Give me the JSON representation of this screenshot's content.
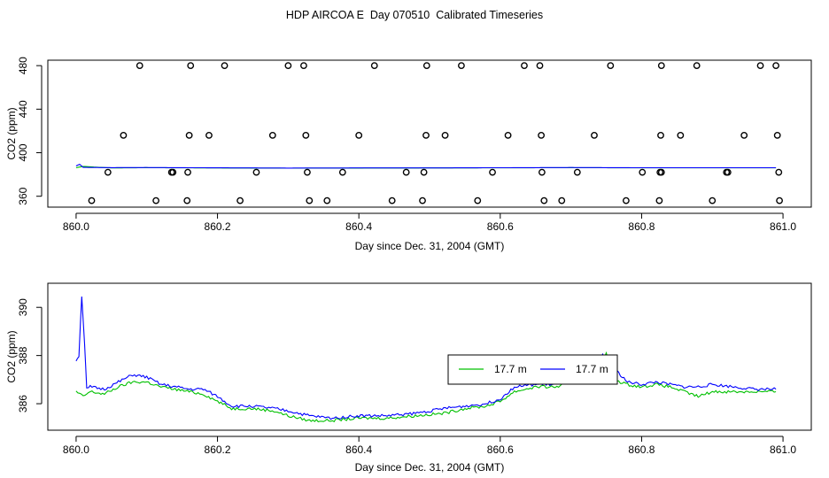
{
  "title": "HDP AIRCOA E  Day 070510  Calibrated Timeseries",
  "colors": {
    "green": "#00c000",
    "blue": "#0000ff",
    "axis": "#000000"
  },
  "chart_data": [
    {
      "type": "scatter",
      "xlabel": "Day since Dec. 31, 2004 (GMT)",
      "ylabel": "CO2 (ppm)",
      "xlim": [
        859.96,
        861.04
      ],
      "ylim": [
        350,
        485
      ],
      "xticks": [
        860.0,
        860.2,
        860.4,
        860.6,
        860.8,
        861.0
      ],
      "xtick_labels": [
        "860.0",
        "860.2",
        "860.4",
        "860.6",
        "860.8",
        "861.0"
      ],
      "yticks": [
        360,
        400,
        440,
        480
      ],
      "ytick_labels": [
        "360",
        "400",
        "440",
        "480"
      ],
      "points": {
        "y480": [
          860.09,
          860.162,
          860.21,
          860.3,
          860.322,
          860.422,
          860.496,
          860.545,
          860.634,
          860.656,
          860.756,
          860.828,
          860.878,
          860.968,
          860.99
        ],
        "y416": [
          860.067,
          860.16,
          860.188,
          860.278,
          860.325,
          860.4,
          860.495,
          860.522,
          860.611,
          860.658,
          860.733,
          860.827,
          860.855,
          860.945,
          860.992
        ],
        "y382": [
          860.045,
          860.135,
          860.137,
          860.158,
          860.255,
          860.327,
          860.377,
          860.467,
          860.492,
          860.589,
          860.659,
          860.709,
          860.801,
          860.826,
          860.828,
          860.92,
          860.922,
          860.994
        ],
        "y356": [
          860.022,
          860.113,
          860.157,
          860.232,
          860.33,
          860.355,
          860.447,
          860.49,
          860.568,
          860.662,
          860.687,
          860.778,
          860.825,
          860.9,
          860.995
        ]
      },
      "series": [
        {
          "color": "green",
          "x": [
            860.0,
            860.01,
            860.05,
            860.1,
            860.2,
            860.3,
            860.4,
            860.5,
            860.6,
            860.7,
            860.8,
            860.9,
            860.99
          ],
          "y": [
            386.2,
            387.4,
            386.0,
            386.2,
            386.0,
            385.8,
            385.9,
            386.0,
            386.1,
            386.2,
            386.1,
            386.1,
            386.1
          ]
        },
        {
          "color": "blue",
          "x": [
            860.0,
            860.005,
            860.01,
            860.05,
            860.1,
            860.2,
            860.3,
            860.4,
            860.5,
            860.6,
            860.7,
            860.8,
            860.9,
            860.99
          ],
          "y": [
            387.8,
            389.4,
            386.5,
            386.3,
            386.4,
            386.1,
            385.9,
            386.0,
            386.0,
            386.2,
            386.4,
            386.2,
            386.2,
            386.2
          ]
        }
      ]
    },
    {
      "type": "line",
      "xlabel": "Day since Dec. 31, 2004 (GMT)",
      "ylabel": "CO2 (ppm)",
      "xlim": [
        859.96,
        861.04
      ],
      "ylim": [
        384.9,
        391.0
      ],
      "xticks": [
        860.0,
        860.2,
        860.4,
        860.6,
        860.8,
        861.0
      ],
      "xtick_labels": [
        "860.0",
        "860.2",
        "860.4",
        "860.6",
        "860.8",
        "861.0"
      ],
      "yticks": [
        386,
        388,
        390
      ],
      "ytick_labels": [
        "386",
        "388",
        "390"
      ],
      "legend": {
        "position": "center-right",
        "entries": [
          {
            "label": "17.7 m",
            "color": "green"
          },
          {
            "label": "17.7 m",
            "color": "blue"
          }
        ]
      },
      "series": [
        {
          "name": "17.7 m",
          "color": "green",
          "x": [
            860.0,
            860.01,
            860.02,
            860.04,
            860.06,
            860.08,
            860.1,
            860.12,
            860.14,
            860.16,
            860.18,
            860.2,
            860.22,
            860.25,
            860.28,
            860.3,
            860.33,
            860.36,
            860.4,
            860.44,
            860.48,
            860.52,
            860.55,
            860.58,
            860.6,
            860.62,
            860.65,
            860.68,
            860.7,
            860.72,
            860.74,
            860.75,
            860.76,
            860.78,
            860.8,
            860.82,
            860.84,
            860.86,
            860.88,
            860.9,
            860.93,
            860.96,
            860.99
          ],
          "y": [
            386.5,
            386.3,
            386.5,
            386.4,
            386.7,
            386.9,
            386.9,
            386.7,
            386.6,
            386.5,
            386.4,
            386.1,
            385.8,
            385.8,
            385.7,
            385.5,
            385.3,
            385.3,
            385.4,
            385.4,
            385.5,
            385.6,
            385.8,
            385.9,
            386.1,
            386.5,
            386.7,
            386.7,
            386.9,
            387.0,
            387.3,
            388.1,
            387.0,
            386.8,
            386.7,
            386.8,
            386.7,
            386.5,
            386.3,
            386.5,
            386.5,
            386.5,
            386.5
          ]
        },
        {
          "name": "17.7 m",
          "color": "blue",
          "x": [
            860.0,
            860.004,
            860.008,
            860.012,
            860.015,
            860.02,
            860.04,
            860.06,
            860.08,
            860.1,
            860.12,
            860.14,
            860.16,
            860.18,
            860.2,
            860.22,
            860.25,
            860.28,
            860.3,
            860.33,
            860.36,
            860.4,
            860.44,
            860.48,
            860.52,
            860.55,
            860.58,
            860.6,
            860.62,
            860.65,
            860.68,
            860.7,
            860.72,
            860.74,
            860.745,
            860.75,
            860.76,
            860.78,
            860.8,
            860.82,
            860.84,
            860.86,
            860.88,
            860.9,
            860.93,
            860.96,
            860.99
          ],
          "y": [
            387.8,
            388.0,
            390.5,
            388.5,
            386.6,
            386.7,
            386.6,
            386.9,
            387.2,
            387.1,
            386.8,
            386.7,
            386.6,
            386.6,
            386.3,
            385.9,
            385.9,
            385.8,
            385.7,
            385.5,
            385.4,
            385.5,
            385.5,
            385.6,
            385.8,
            385.9,
            386.0,
            386.2,
            386.7,
            386.8,
            386.8,
            386.9,
            387.0,
            387.4,
            388.1,
            386.9,
            387.5,
            386.9,
            386.8,
            386.9,
            386.8,
            386.7,
            386.7,
            386.8,
            386.7,
            386.6,
            386.6
          ]
        }
      ]
    }
  ]
}
